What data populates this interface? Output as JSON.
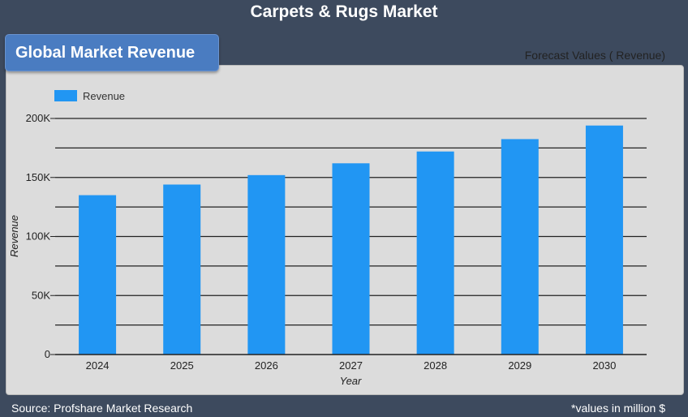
{
  "page": {
    "title": "Carpets & Rugs Market",
    "badge": "Global Market Revenue",
    "forecast_note": "Forecast Values ( Revenue)",
    "source": "Source: Profshare Market Research",
    "units_note": "*values in million $"
  },
  "colors": {
    "background": "#3d4a5e",
    "panel": "#dcdcdc",
    "bar": "#2196f3",
    "badge": "#4a7cc1"
  },
  "chart_data": {
    "type": "bar",
    "categories": [
      "2024",
      "2025",
      "2026",
      "2027",
      "2028",
      "2029",
      "2030"
    ],
    "series": [
      {
        "name": "Revenue",
        "values": [
          135000,
          144000,
          152000,
          162000,
          172000,
          182500,
          194000
        ]
      }
    ],
    "xlabel": "Year",
    "ylabel": "Revenue",
    "ylim": [
      0,
      200000
    ],
    "yticks": [
      0,
      50000,
      100000,
      150000,
      200000
    ],
    "ytick_labels": [
      "0",
      "50K",
      "100K",
      "150K",
      "200K"
    ],
    "grid": true,
    "legend": "top-left"
  }
}
